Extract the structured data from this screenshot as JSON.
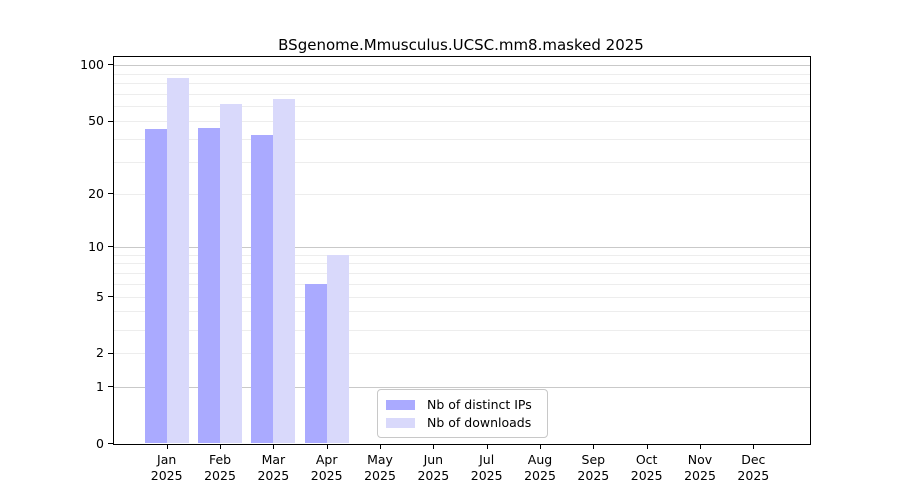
{
  "chart_data": {
    "type": "bar",
    "title": "BSgenome.Mmusculus.UCSC.mm8.masked 2025",
    "categories": [
      "Jan",
      "Feb",
      "Mar",
      "Apr",
      "May",
      "Jun",
      "Jul",
      "Aug",
      "Sep",
      "Oct",
      "Nov",
      "Dec"
    ],
    "year_label": "2025",
    "series": [
      {
        "name": "Nb of distinct IPs",
        "color": "#aaaaff",
        "values": [
          45,
          46,
          42,
          6,
          0,
          0,
          0,
          0,
          0,
          0,
          0,
          0
        ]
      },
      {
        "name": "Nb of downloads",
        "color": "#d9d9fb",
        "values": [
          85,
          62,
          66,
          9,
          0,
          0,
          0,
          0,
          0,
          0,
          0,
          0
        ]
      }
    ],
    "y_axis": {
      "scale": "log1p",
      "tick_values": [
        0,
        1,
        2,
        5,
        10,
        20,
        50,
        100
      ],
      "tick_labels": [
        "0",
        "1",
        "2",
        "5",
        "10",
        "20",
        "50",
        "100"
      ],
      "range": [
        0,
        100
      ]
    },
    "grid": {
      "minor_values": [
        2,
        3,
        4,
        5,
        6,
        7,
        8,
        9,
        20,
        30,
        40,
        50,
        60,
        70,
        80,
        90
      ],
      "major_values": [
        1,
        10,
        100
      ],
      "minor_color": "#ededed",
      "major_color": "#c9c9c9"
    },
    "legend_position": "inside-bottom-center",
    "axis_color": "#000000",
    "text_color": "#000000"
  }
}
